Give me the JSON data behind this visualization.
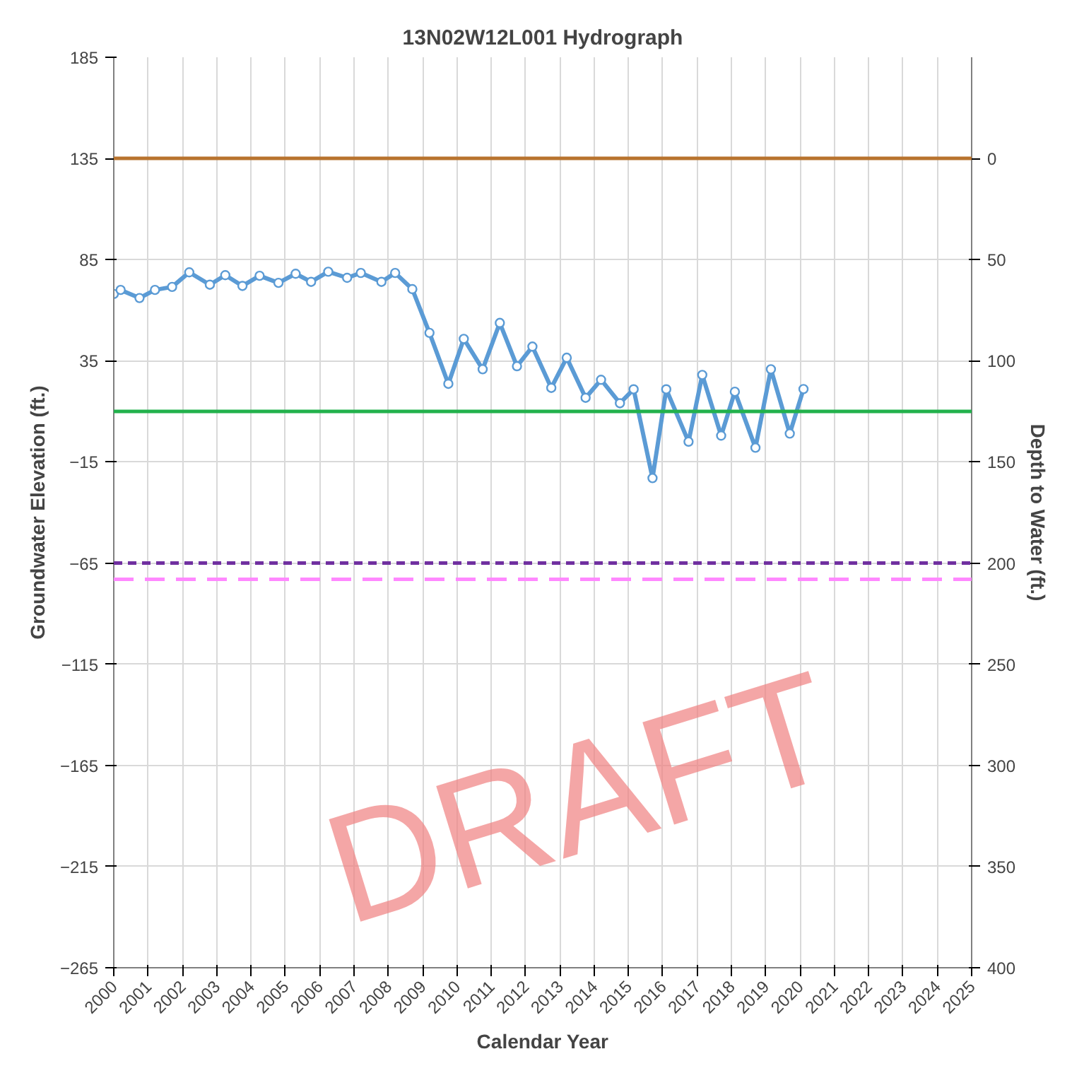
{
  "chart_data": {
    "type": "line",
    "title": "13N02W12L001 Hydrograph",
    "xlabel": "Calendar Year",
    "ylabel": "Groundwater Elevation (ft.)",
    "y2label": "Depth to Water (ft.)",
    "series": [
      {
        "color": "#5b9bd5",
        "x": [
          2000.0,
          2000.2,
          2000.75,
          2001.2,
          2001.7,
          2002.2,
          2002.8,
          2003.25,
          2003.75,
          2004.25,
          2004.8,
          2005.3,
          2005.75,
          2006.25,
          2006.8,
          2007.2,
          2007.8,
          2008.2,
          2008.7,
          2009.2,
          2009.75,
          2010.2,
          2010.75,
          2011.25,
          2011.75,
          2012.2,
          2012.75,
          2013.2,
          2013.75,
          2014.2,
          2014.75,
          2015.15,
          2015.7,
          2016.1,
          2016.75,
          2017.15,
          2017.7,
          2018.1,
          2018.7,
          2019.15,
          2019.7,
          2020.1
        ],
        "values": [
          68,
          70,
          66,
          70,
          71.5,
          78.7,
          72.6,
          77.3,
          72,
          77,
          73.5,
          78,
          74,
          79,
          76,
          78.4,
          74,
          78.4,
          70.4,
          48.8,
          23.6,
          45.8,
          30.8,
          53.7,
          32.3,
          42,
          21.6,
          36.5,
          16.7,
          25.6,
          14,
          20.9,
          -23,
          20.9,
          -5,
          28,
          -2,
          19.7,
          -8,
          30.8,
          -1,
          21
        ]
      }
    ],
    "marker": "circle",
    "line_style": "solid",
    "xlim": [
      2000,
      2025
    ],
    "xticks": [
      2000,
      2001,
      2002,
      2003,
      2004,
      2005,
      2006,
      2007,
      2008,
      2009,
      2010,
      2011,
      2012,
      2013,
      2014,
      2015,
      2016,
      2017,
      2018,
      2019,
      2020,
      2021,
      2022,
      2023,
      2024,
      2025
    ],
    "ylim": [
      -265,
      185
    ],
    "yticks": [
      -265,
      -215,
      -165,
      -115,
      -65,
      -15,
      35,
      85,
      135,
      185
    ],
    "y2lim": [
      400,
      -50
    ],
    "y2ticks": [
      0,
      50,
      100,
      150,
      200,
      250,
      300,
      350,
      400
    ],
    "ref_lines": [
      {
        "axis": "y",
        "value": 135,
        "color": "#b8732e",
        "line_style": "solid"
      },
      {
        "axis": "y",
        "value": 10,
        "color": "#22b14c",
        "line_style": "solid"
      },
      {
        "axis": "y",
        "value": -65,
        "color": "#7030a0",
        "line_style": "dashed"
      },
      {
        "axis": "y",
        "value": -73,
        "color": "#ff88ff",
        "line_style": "longdash"
      }
    ],
    "annotations": [
      "DRAFT"
    ],
    "grid": true
  }
}
